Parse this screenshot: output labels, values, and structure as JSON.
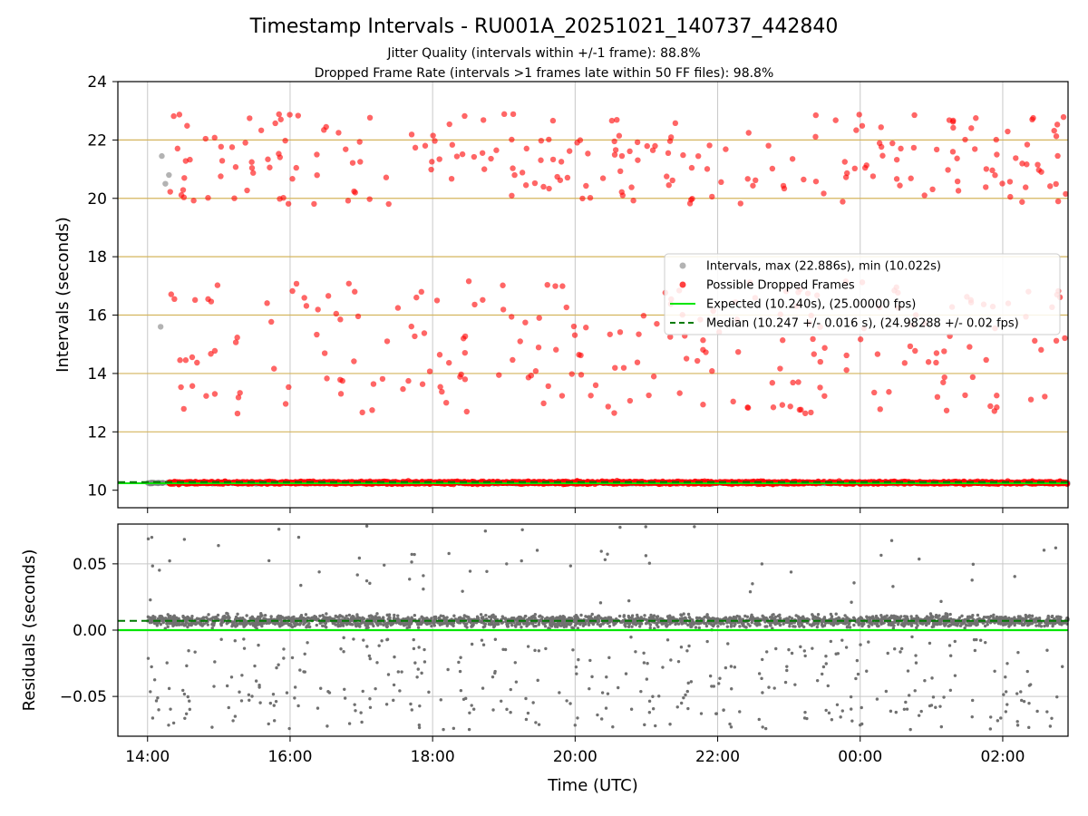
{
  "title": "Timestamp Intervals - RU001A_20251021_140737_442840",
  "subtitle_lines": [
    "Jitter Quality (intervals within +/-1 frame): 88.8%",
    "Dropped Frame Rate (intervals >1 frames late within 50 FF files): 98.8%"
  ],
  "colors": {
    "intervals": "#808080",
    "dropped": "#ff0000",
    "expected": "#00e600",
    "median": "#007a00",
    "gridline": "#d4b55e",
    "grid": "#c8c8c8",
    "residuals": "#707070"
  },
  "chart_data": [
    {
      "type": "scatter",
      "ylabel": "Intervals (seconds)",
      "xlim": [
        "13:35",
        "02:55"
      ],
      "ylim": [
        9.4,
        24
      ],
      "yticks": [
        10,
        12,
        14,
        16,
        18,
        20,
        22,
        24
      ],
      "ytick_labels": [
        "10",
        "12",
        "14",
        "16",
        "18",
        "20",
        "22",
        "24"
      ],
      "horizontal_lines": [
        10.24,
        12,
        14,
        16,
        18,
        20,
        22
      ],
      "grid": true,
      "legend_position": "center-right",
      "legend": [
        {
          "label": "Intervals, max (22.886s), min (10.022s)",
          "kind": "gray-dot"
        },
        {
          "label": "Possible Dropped Frames",
          "kind": "red-dot"
        },
        {
          "label": "Expected (10.240s), (25.00000 fps)",
          "kind": "green-line"
        },
        {
          "label": "Median (10.247 +/- 0.016 s), (24.98288 +/- 0.02 fps)",
          "kind": "dark-green-dash"
        }
      ],
      "series": [
        {
          "name": "Intervals, max (22.886s), min (10.022s)",
          "x_range": [
            "14:00",
            "02:55"
          ],
          "baseline": 10.247,
          "spread": 0.03,
          "extra_points": [
            {
              "x": "14:12",
              "y": 21.45
            },
            {
              "x": "14:15",
              "y": 20.5
            },
            {
              "x": "14:18",
              "y": 20.8
            },
            {
              "x": "14:11",
              "y": 15.6
            },
            {
              "x": "14:13",
              "y": 10.25
            }
          ]
        },
        {
          "name": "Possible Dropped Frames",
          "x_range": [
            "14:18",
            "02:55"
          ],
          "baseline": 10.26,
          "clusters": [
            {
              "band": "~20.2-22.9 s",
              "y_min": 19.8,
              "y_max": 22.9
            },
            {
              "band": "~12.6-17.2 s",
              "y_min": 12.6,
              "y_max": 17.2
            }
          ]
        }
      ],
      "expected": 10.24,
      "median": 10.247
    },
    {
      "type": "scatter",
      "ylabel": "Residuals (seconds)",
      "xlabel": "Time (UTC)",
      "xlim": [
        "13:35",
        "02:55"
      ],
      "ylim": [
        -0.08,
        0.08
      ],
      "yticks": [
        0.05,
        0.0,
        -0.05
      ],
      "ytick_labels": [
        "0.05",
        "0.00",
        "−0.05"
      ],
      "xticks": [
        "14:00",
        "16:00",
        "18:00",
        "20:00",
        "22:00",
        "00:00",
        "02:00"
      ],
      "grid": true,
      "series": [
        {
          "name": "Residuals",
          "x_range": [
            "14:00",
            "02:55"
          ],
          "band_center": 0.007,
          "band_spread": 0.006,
          "outlier_range": [
            -0.08,
            0.08
          ]
        }
      ],
      "expected": 0.0,
      "median": 0.007
    }
  ]
}
